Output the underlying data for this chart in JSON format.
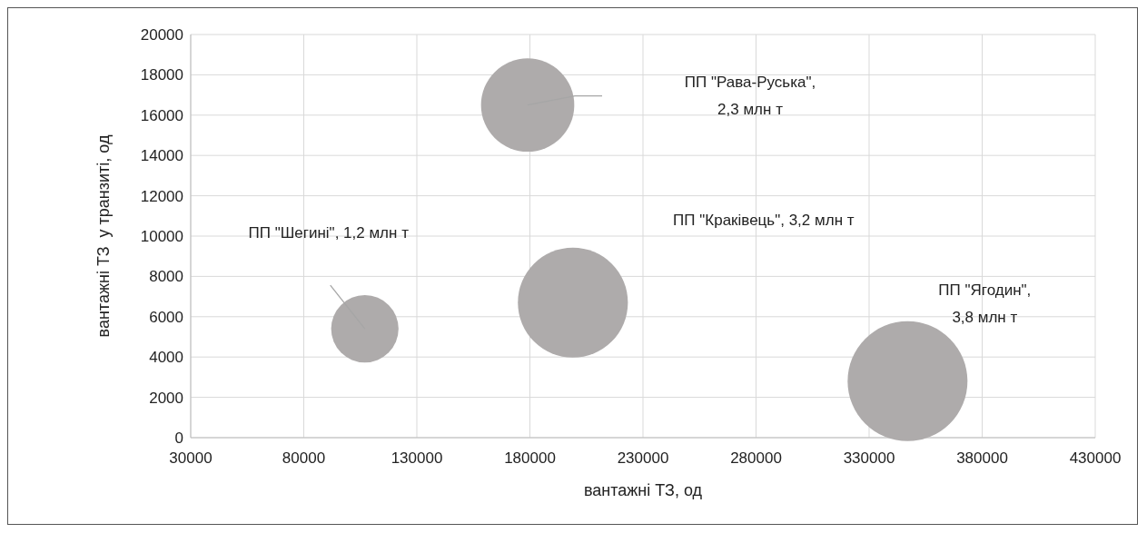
{
  "chart_data": {
    "type": "bubble",
    "xlabel": "вантажні ТЗ, од",
    "ylabel": "вантажні ТЗ  у транзиті, од",
    "x": [
      107000,
      179000,
      199000,
      347000
    ],
    "values": [
      5400,
      16500,
      6700,
      2800
    ],
    "sizes": [
      0.316,
      0.605,
      0.842,
      1
    ],
    "annotations": [
      "ПП \"Шегині\", 1,2 млн т",
      "ПП \"Рава-Руська\", 2,3 млн т",
      "ПП \"Краківець\", 3,2 млн т",
      "ПП \"Ягодин\", 3,8 млн т"
    ],
    "color": "#aeabab",
    "xlim": [
      30000,
      430000
    ],
    "xticks": [
      30000,
      80000,
      130000,
      180000,
      230000,
      280000,
      330000,
      380000,
      430000
    ],
    "ylim": [
      0,
      20000
    ],
    "yticks": [
      0,
      2000,
      4000,
      6000,
      8000,
      10000,
      12000,
      14000,
      16000,
      18000,
      20000
    ],
    "grid": true
  }
}
